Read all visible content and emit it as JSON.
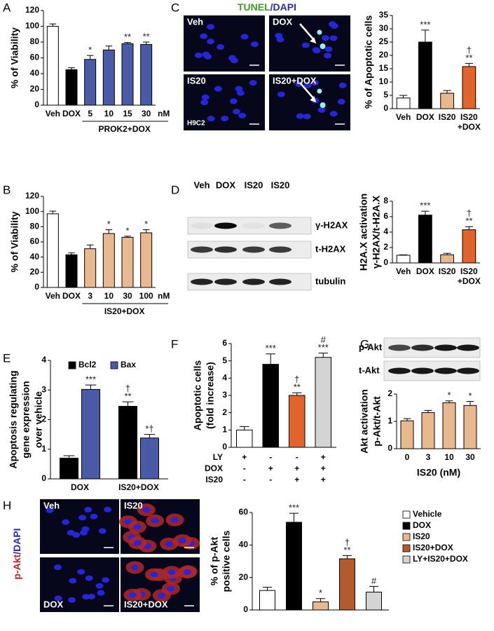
{
  "chart_data": [
    {
      "type": "bar",
      "panel": "A",
      "ylabel": [
        "% of Viability"
      ],
      "categories": [
        "Veh",
        "DOX",
        "5",
        "10",
        "15",
        "30"
      ],
      "x_unit": "nM",
      "x_group_label": "PROK2+DOX",
      "values": [
        100,
        45,
        58,
        70,
        78,
        77
      ],
      "errors": [
        3,
        2.5,
        5,
        5,
        1.5,
        3
      ],
      "significance": [
        null,
        null,
        [
          "*"
        ],
        null,
        [
          "**"
        ],
        [
          "**"
        ]
      ],
      "colors": [
        "#ffffff",
        "#000000",
        "#4b5aa6",
        "#4b5aa6",
        "#4b5aa6",
        "#4b5aa6"
      ],
      "ylim": [
        0,
        120
      ],
      "yticks": [
        0,
        20,
        40,
        60,
        80,
        100,
        120
      ]
    },
    {
      "type": "bar",
      "panel": "B",
      "ylabel": [
        "% of Viability"
      ],
      "categories": [
        "Veh",
        "DOX",
        "3",
        "10",
        "30",
        "100"
      ],
      "x_unit": "nM",
      "x_group_label": "IS20+DOX",
      "values": [
        97,
        43,
        51,
        71,
        66,
        72
      ],
      "errors": [
        3.5,
        2.5,
        5,
        5,
        1.5,
        4
      ],
      "significance": [
        null,
        null,
        null,
        [
          "*"
        ],
        [
          "*"
        ],
        [
          "*"
        ]
      ],
      "colors": [
        "#ffffff",
        "#000000",
        "#e8b98e",
        "#e8b98e",
        "#e8b98e",
        "#e8b98e"
      ],
      "ylim": [
        0,
        120
      ],
      "yticks": [
        0,
        20,
        40,
        60,
        80,
        100,
        120
      ]
    },
    {
      "type": "bar",
      "panel": "C",
      "image_title": [
        {
          "text": "TUNEL",
          "color": "#3a9a2a"
        },
        {
          "text": "/DAPI",
          "color": "#2a2ab0"
        }
      ],
      "images": [
        {
          "label": "Veh"
        },
        {
          "label": "DOX"
        },
        {
          "label": "IS20"
        },
        {
          "label": "IS20+DOX"
        }
      ],
      "image_note": "H9C2",
      "ylabel": [
        "% of Apoptotic cells"
      ],
      "categories": [
        "Veh",
        "DOX",
        "IS20",
        [
          "IS20",
          "+DOX"
        ]
      ],
      "values": [
        4,
        25,
        5.8,
        15.8
      ],
      "errors": [
        1,
        4.5,
        1,
        1.2
      ],
      "significance": [
        null,
        [
          "***"
        ],
        null,
        [
          "†",
          "**"
        ]
      ],
      "colors": [
        "#ffffff",
        "#000000",
        "#e8b98e",
        "#e2632b"
      ],
      "ylim": [
        0,
        35
      ],
      "yticks": [
        0,
        5,
        10,
        15,
        20,
        25,
        30,
        35
      ]
    },
    {
      "type": "bar",
      "panel": "D",
      "blot": {
        "lanes": [
          "Veh",
          "DOX",
          "IS20",
          "IS20"
        ],
        "rows": [
          "γ-H2AX",
          "t-H2AX",
          "tubulin"
        ]
      },
      "ylabel": [
        "H2A.X activation",
        "γ-H2AX/t-H2A.X"
      ],
      "categories": [
        "Veh",
        "DOX",
        "IS20",
        [
          "IS20",
          "+DOX"
        ]
      ],
      "values": [
        1,
        6.2,
        1.05,
        4.3
      ],
      "errors": [
        0.05,
        0.5,
        0.2,
        0.4
      ],
      "significance": [
        null,
        [
          "***"
        ],
        null,
        [
          "†",
          "**"
        ]
      ],
      "colors": [
        "#ffffff",
        "#000000",
        "#e8b98e",
        "#e2632b"
      ],
      "ylim": [
        0,
        8
      ],
      "yticks": [
        0,
        2,
        4,
        6,
        8
      ]
    },
    {
      "type": "bar",
      "panel": "E",
      "ylabel": [
        "Apoptosis regulating",
        "gene expression",
        "over vehicle"
      ],
      "categories": [
        "DOX",
        "IS20+DOX"
      ],
      "legend": "top",
      "series": [
        {
          "name": "Bcl2",
          "color": "#000000",
          "values": [
            0.7,
            2.45
          ],
          "errors": [
            0.08,
            0.15
          ],
          "significance": [
            null,
            [
              "†",
              "**"
            ]
          ]
        },
        {
          "name": "Bax",
          "color": "#4b5aa6",
          "values": [
            3.02,
            1.38
          ],
          "errors": [
            0.15,
            0.12
          ],
          "significance": [
            [
              "***"
            ],
            [
              "*†"
            ]
          ]
        }
      ],
      "ylim": [
        0,
        4
      ],
      "yticks": [
        0,
        1,
        2,
        3,
        4
      ]
    },
    {
      "type": "bar",
      "panel": "F",
      "ylabel": [
        "Apoptotic cells",
        "(fold increase)"
      ],
      "categories": [
        null,
        null,
        null,
        null
      ],
      "values": [
        1,
        4.8,
        3.0,
        5.2
      ],
      "errors": [
        0.2,
        0.6,
        0.15,
        0.25
      ],
      "significance": [
        null,
        [
          "***"
        ],
        [
          "†",
          "**"
        ],
        [
          "#",
          "***"
        ]
      ],
      "colors": [
        "#ffffff",
        "#000000",
        "#e2632b",
        "#d4d4d4"
      ],
      "ylim": [
        0,
        6
      ],
      "yticks": [
        0,
        1,
        2,
        3,
        4,
        5,
        6
      ],
      "conditions": [
        {
          "name": "LY",
          "values": [
            "+",
            "-",
            "-",
            "+"
          ]
        },
        {
          "name": "DOX",
          "values": [
            "-",
            "+",
            "+",
            "+"
          ]
        },
        {
          "name": "IS20",
          "values": [
            "-",
            "-",
            "+",
            "+"
          ]
        }
      ]
    },
    {
      "type": "bar",
      "panel": "G",
      "blot": {
        "rows": [
          "p-Akt",
          "t-Akt"
        ]
      },
      "ylabel": [
        "Akt activation",
        "p-Akt/t-Akt"
      ],
      "categories": [
        "0",
        "3",
        "10",
        "30"
      ],
      "xlabel": "IS20 (nM)",
      "values": [
        1.02,
        1.32,
        1.68,
        1.58
      ],
      "errors": [
        0.08,
        0.08,
        0.07,
        0.15
      ],
      "significance": [
        null,
        null,
        [
          "*"
        ],
        [
          "*"
        ]
      ],
      "colors": [
        "#e8b98e",
        "#e8b98e",
        "#e8b98e",
        "#e8b98e"
      ],
      "ylim": [
        0,
        2
      ],
      "yticks": [
        0,
        1,
        2
      ]
    },
    {
      "type": "bar",
      "panel": "H",
      "image_title": [
        {
          "text": "p-Akt",
          "color": "#c02020"
        },
        {
          "text": "/DAPI",
          "color": "#2a2ab0"
        }
      ],
      "images": [
        {
          "label": "Veh"
        },
        {
          "label": "IS20"
        },
        {
          "label": "DOX"
        },
        {
          "label": "IS20+DOX"
        }
      ],
      "ylabel": [
        "% of p-Akt",
        "positive cells"
      ],
      "categories": [
        null
      ],
      "legend": "right",
      "series": [
        {
          "name": "Vehicle",
          "color": "#ffffff",
          "values": [
            12
          ],
          "errors": [
            2
          ],
          "significance": [
            null
          ]
        },
        {
          "name": "DOX",
          "color": "#000000",
          "values": [
            54
          ],
          "errors": [
            5.5
          ],
          "significance": [
            [
              "***"
            ]
          ]
        },
        {
          "name": "IS20",
          "color": "#e8b98e",
          "values": [
            5
          ],
          "errors": [
            2
          ],
          "significance": [
            [
              "*"
            ]
          ]
        },
        {
          "name": "IS20+DOX",
          "color": "#b35a2e",
          "values": [
            31.5
          ],
          "errors": [
            2
          ],
          "significance": [
            [
              "†",
              "**"
            ]
          ]
        },
        {
          "name": "LY+IS20+DOX",
          "color": "#d4d4d4",
          "values": [
            11
          ],
          "errors": [
            3.5
          ],
          "significance": [
            [
              "#"
            ]
          ]
        }
      ],
      "ylim": [
        0,
        60
      ],
      "yticks": [
        0,
        20,
        40,
        60
      ]
    }
  ]
}
